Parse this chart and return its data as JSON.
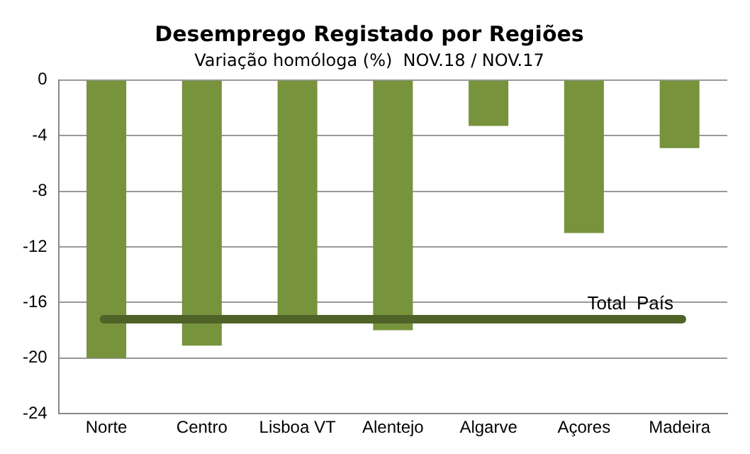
{
  "chart_data": {
    "type": "bar",
    "title": "Desemprego Registado por Regiões",
    "subtitle": "Variação homóloga (%)  NOV.18 / NOV.17",
    "categories": [
      "Norte",
      "Centro",
      "Lisboa VT",
      "Alentejo",
      "Algarve",
      "Açores",
      "Madeira"
    ],
    "values": [
      -20,
      -19.1,
      -17,
      -18,
      -3.3,
      -11,
      -4.9
    ],
    "color": "#77933c",
    "ylim": [
      -24,
      0
    ],
    "yticks": [
      -24,
      -20,
      -16,
      -12,
      -8,
      -4,
      0
    ],
    "grid": "y",
    "ref_lines": [
      {
        "axis": "y",
        "value": -17.2,
        "label": "Total  País",
        "color": "#4f6228"
      }
    ]
  }
}
